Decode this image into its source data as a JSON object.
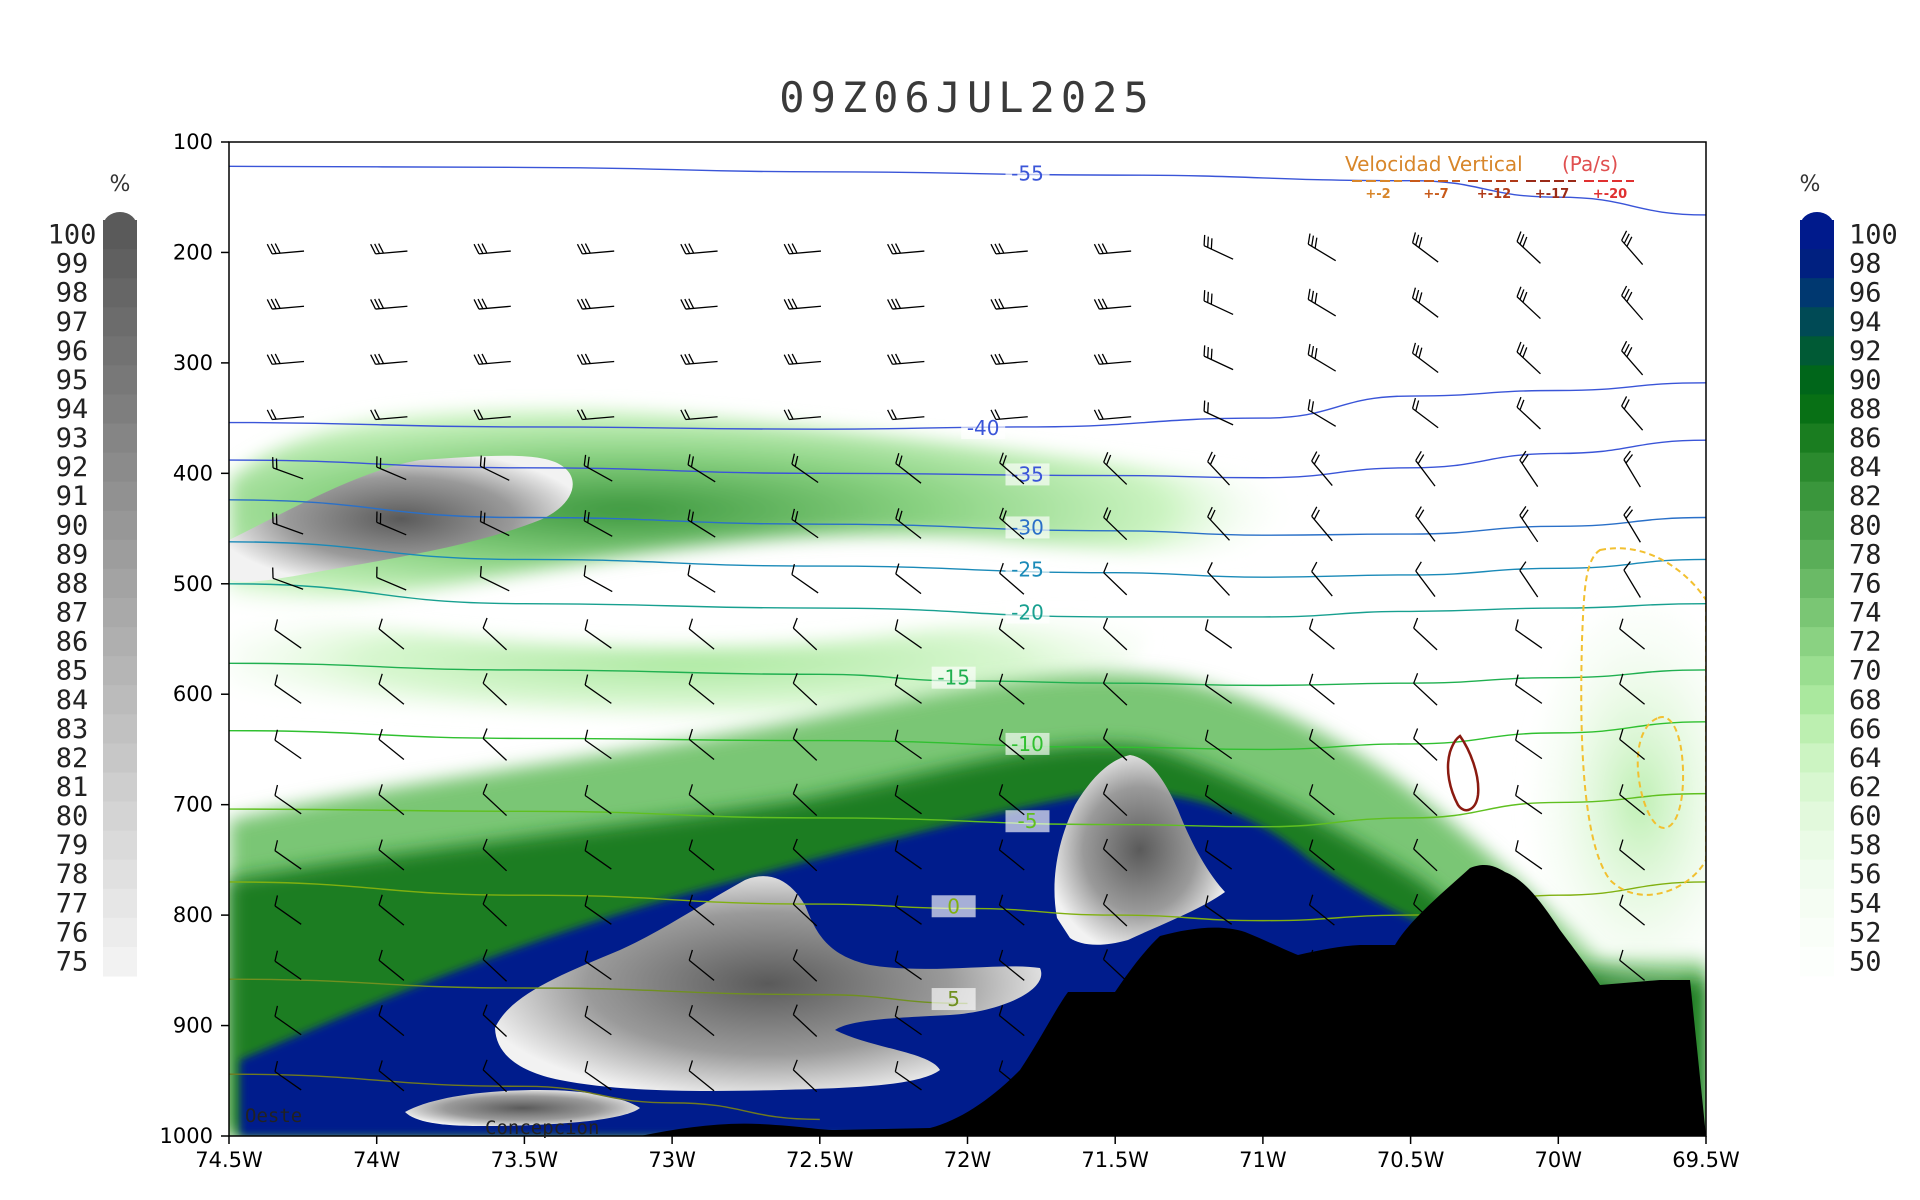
{
  "chart_data": {
    "type": "heatmap",
    "title": "09Z06JUL2025",
    "x_axis": {
      "range": [
        74.5,
        69.5
      ],
      "direction": "W",
      "tick_labels": [
        "74.5W",
        "74W",
        "73.5W",
        "73W",
        "72.5W",
        "72W",
        "71.5W",
        "71W",
        "70.5W",
        "70W",
        "69.5W"
      ],
      "tick_values": [
        74.5,
        74,
        73.5,
        73,
        72.5,
        72,
        71.5,
        71,
        70.5,
        70,
        69.5
      ]
    },
    "y_axis": {
      "range": [
        1000,
        100
      ],
      "tick_labels": [
        "100",
        "200",
        "300",
        "400",
        "500",
        "600",
        "700",
        "800",
        "900",
        "1000"
      ],
      "tick_values": [
        100,
        200,
        300,
        400,
        500,
        600,
        700,
        800,
        900,
        1000
      ]
    },
    "colorbar_left": {
      "unit": "%",
      "labels": [
        "100",
        "99",
        "98",
        "97",
        "96",
        "95",
        "94",
        "93",
        "92",
        "91",
        "90",
        "89",
        "88",
        "87",
        "86",
        "85",
        "84",
        "83",
        "82",
        "81",
        "80",
        "79",
        "78",
        "77",
        "76",
        "75"
      ],
      "color_top": "#5a5a5a",
      "color_bottom": "#f2f2f2"
    },
    "colorbar_right": {
      "unit": "%",
      "labels": [
        "100",
        "98",
        "96",
        "94",
        "92",
        "90",
        "88",
        "86",
        "84",
        "82",
        "80",
        "78",
        "76",
        "74",
        "72",
        "70",
        "68",
        "66",
        "64",
        "62",
        "60",
        "58",
        "56",
        "54",
        "52",
        "50"
      ],
      "colors": [
        "#001a8c",
        "#002080",
        "#003870",
        "#004a55",
        "#005a35",
        "#00661a",
        "#087015",
        "#1a7d20",
        "#2b8a2e",
        "#3a963c",
        "#4aa24a",
        "#5aae58",
        "#6aba66",
        "#7ac674",
        "#8ad282",
        "#9ade90",
        "#aae89e",
        "#bcefb0",
        "#ccf4c2",
        "#d8f7d0",
        "#e2f9dc",
        "#eafbe6",
        "#f0fcee",
        "#f5fdf3",
        "#f9fef8",
        "#fcfffc"
      ]
    },
    "temperature_contours": [
      {
        "label": "-55",
        "level": -55,
        "color": "#3a55d8",
        "points": [
          [
            74.5,
            122
          ],
          [
            73.5,
            123
          ],
          [
            72.5,
            127
          ],
          [
            71.5,
            130
          ],
          [
            70.5,
            135
          ],
          [
            70,
            150
          ],
          [
            69.5,
            166
          ]
        ]
      },
      {
        "label": "-40",
        "level": -40,
        "color": "#3a55d8",
        "points": [
          [
            74.5,
            354
          ],
          [
            73.5,
            358
          ],
          [
            72.5,
            360
          ],
          [
            71.8,
            358
          ],
          [
            71,
            350
          ],
          [
            70.5,
            330
          ],
          [
            70,
            325
          ],
          [
            69.5,
            318
          ]
        ]
      },
      {
        "label": "-35",
        "level": -35,
        "color": "#3a55d8",
        "points": [
          [
            74.5,
            388
          ],
          [
            73.5,
            395
          ],
          [
            72.5,
            400
          ],
          [
            71.5,
            402
          ],
          [
            71,
            404
          ],
          [
            70.5,
            395
          ],
          [
            70,
            382
          ],
          [
            69.5,
            370
          ]
        ]
      },
      {
        "label": "-30",
        "level": -30,
        "color": "#2a70c8",
        "points": [
          [
            74.5,
            424
          ],
          [
            73.5,
            440
          ],
          [
            72.5,
            446
          ],
          [
            71.5,
            452
          ],
          [
            71,
            456
          ],
          [
            70.5,
            455
          ],
          [
            70,
            448
          ],
          [
            69.5,
            440
          ]
        ]
      },
      {
        "label": "-25",
        "level": -25,
        "color": "#1a8ab8",
        "points": [
          [
            74.5,
            462
          ],
          [
            73.5,
            478
          ],
          [
            72.5,
            484
          ],
          [
            71.5,
            490
          ],
          [
            71,
            494
          ],
          [
            70.5,
            492
          ],
          [
            70,
            486
          ],
          [
            69.5,
            478
          ]
        ]
      },
      {
        "label": "-20",
        "level": -20,
        "color": "#18a090",
        "points": [
          [
            74.5,
            500
          ],
          [
            73.5,
            518
          ],
          [
            72.5,
            522
          ],
          [
            71.5,
            530
          ],
          [
            71,
            530
          ],
          [
            70.5,
            525
          ],
          [
            70,
            522
          ],
          [
            69.5,
            518
          ]
        ]
      },
      {
        "label": "-15",
        "level": -15,
        "color": "#20b050",
        "points": [
          [
            74.5,
            572
          ],
          [
            73.5,
            578
          ],
          [
            72.5,
            582
          ],
          [
            72,
            588
          ],
          [
            71.5,
            590
          ],
          [
            71,
            592
          ],
          [
            70.5,
            590
          ],
          [
            70,
            585
          ],
          [
            69.5,
            578
          ]
        ]
      },
      {
        "label": "-10",
        "level": -10,
        "color": "#30c030",
        "points": [
          [
            74.5,
            633
          ],
          [
            73.5,
            640
          ],
          [
            72.5,
            642
          ],
          [
            71.5,
            648
          ],
          [
            71,
            650
          ],
          [
            70.5,
            645
          ],
          [
            70,
            635
          ],
          [
            69.5,
            625
          ]
        ]
      },
      {
        "label": "-5",
        "level": -5,
        "color": "#60c020",
        "points": [
          [
            74.5,
            704
          ],
          [
            73.5,
            706
          ],
          [
            72.5,
            712
          ],
          [
            71.5,
            718
          ],
          [
            71,
            720
          ],
          [
            70.5,
            712
          ],
          [
            70,
            698
          ],
          [
            69.5,
            690
          ]
        ]
      },
      {
        "label": "0",
        "level": 0,
        "color": "#80b010",
        "points": [
          [
            74.5,
            770
          ],
          [
            73.5,
            782
          ],
          [
            72.5,
            790
          ],
          [
            72,
            794
          ],
          [
            71.5,
            800
          ],
          [
            71,
            805
          ],
          [
            70.5,
            800
          ],
          [
            70,
            782
          ],
          [
            69.5,
            770
          ]
        ]
      },
      {
        "label": "5",
        "level": 5,
        "color": "#709020",
        "points": [
          [
            74.5,
            858
          ],
          [
            73.5,
            866
          ],
          [
            72.5,
            872
          ],
          [
            72,
            880
          ]
        ]
      },
      {
        "label": "",
        "level": 10,
        "color": "#707a20",
        "points": [
          [
            74.5,
            944
          ],
          [
            73.5,
            955
          ],
          [
            73,
            970
          ],
          [
            72.5,
            985
          ]
        ]
      }
    ],
    "vertical_velocity_legend": {
      "title": "Velocidad Vertical",
      "unit": "(Pa/s)",
      "levels": [
        "+-2",
        "+-7",
        "+-12",
        "+-17",
        "+-20"
      ],
      "colors": [
        "#d8862a",
        "#c85a1a",
        "#b03a18",
        "#9a2a18",
        "#e03030"
      ]
    },
    "place_labels": [
      "Oeste",
      "Concepcion"
    ]
  }
}
